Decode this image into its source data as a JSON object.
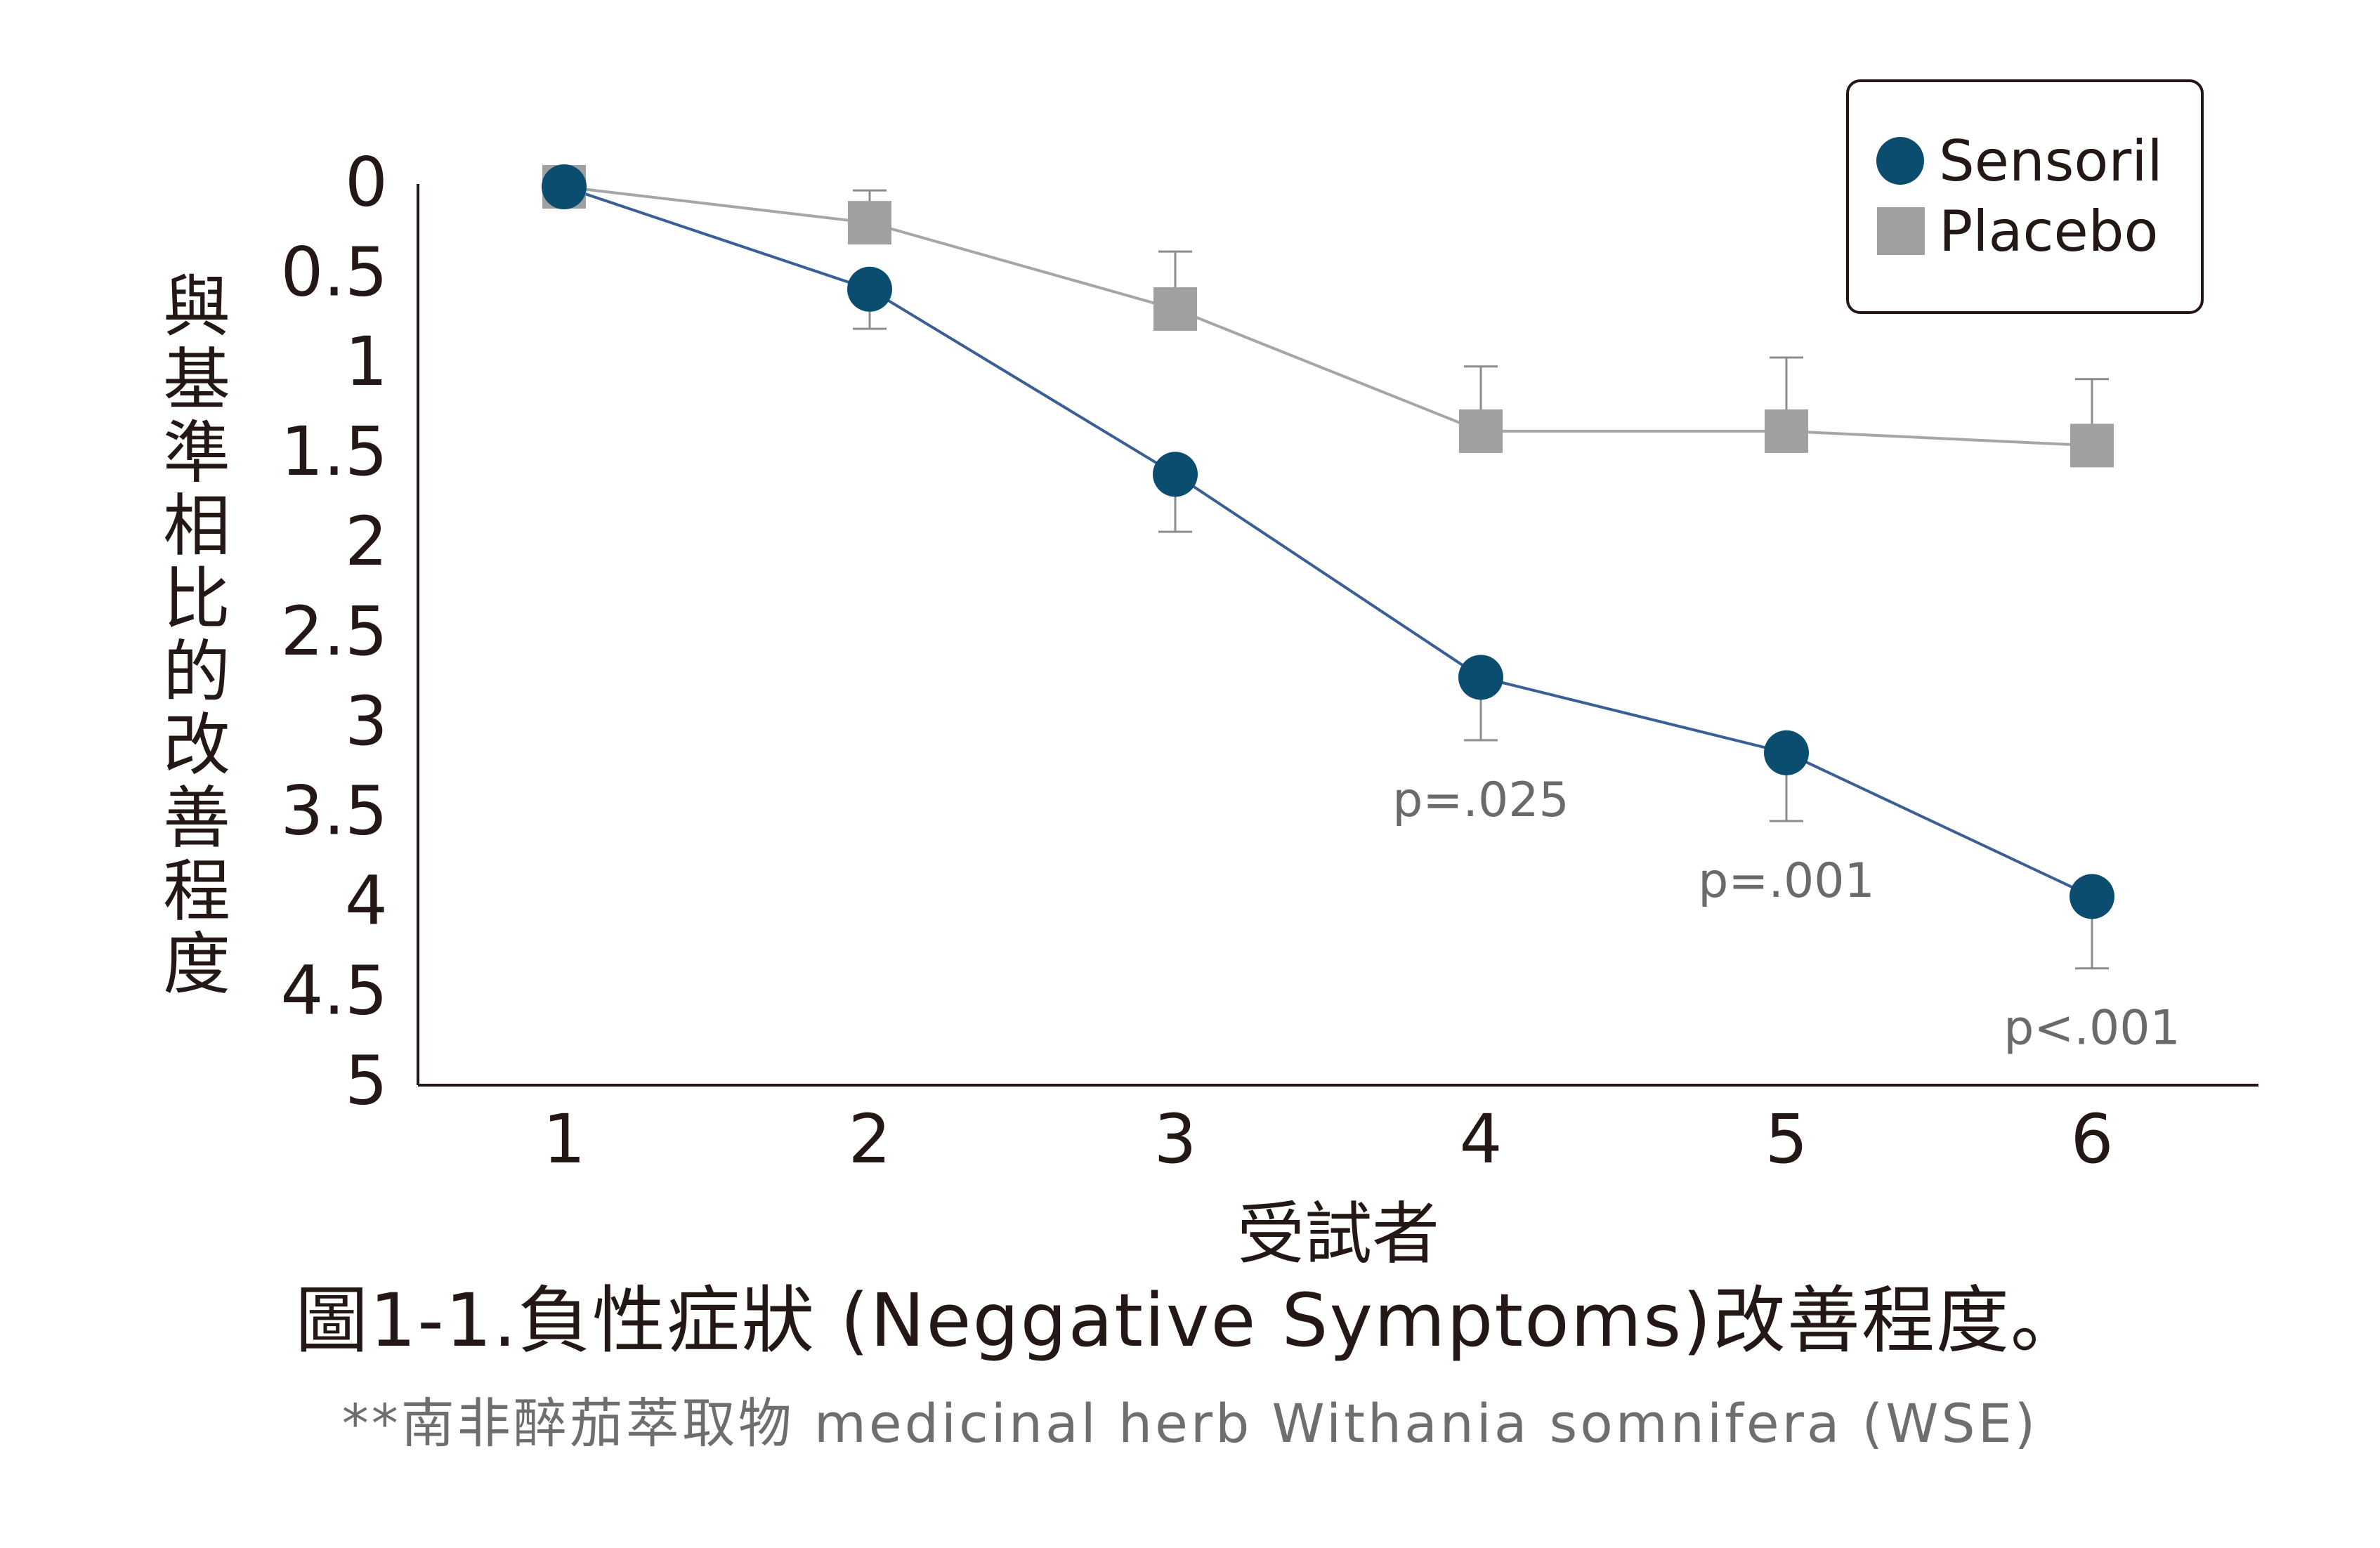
{
  "chart_data": {
    "type": "line",
    "x": [
      1,
      2,
      3,
      4,
      5,
      6
    ],
    "xlabel": "受試者",
    "ylabel": "與基準相比的改善程度",
    "ylim": [
      0,
      5
    ],
    "y_inverted": true,
    "yticks": [
      "0",
      "0.5",
      "1",
      "1.5",
      "2",
      "2.5",
      "3",
      "3.5",
      "4",
      "4.5",
      "5"
    ],
    "xticks": [
      "1",
      "2",
      "3",
      "4",
      "5",
      "6"
    ],
    "grid": false,
    "legend_position": "top-right",
    "series": [
      {
        "name": "Sensoril",
        "marker": "circle",
        "color": "#0b4d6e",
        "line_color": "#3a5f94",
        "values": [
          0,
          0.57,
          1.6,
          2.73,
          3.15,
          3.95
        ],
        "error": [
          0.1,
          0.22,
          0.32,
          0.35,
          0.38,
          0.4
        ]
      },
      {
        "name": "Placebo",
        "marker": "square",
        "color": "#a0a0a0",
        "line_color": "#a6a6a6",
        "values": [
          0,
          0.2,
          0.68,
          1.36,
          1.36,
          1.44
        ],
        "error": [
          0.1,
          0.18,
          0.32,
          0.36,
          0.41,
          0.37
        ]
      }
    ],
    "annotations": [
      {
        "x": 4,
        "text": "p=.025"
      },
      {
        "x": 5,
        "text": "p=.001"
      },
      {
        "x": 6,
        "text": "p<.001"
      }
    ]
  },
  "caption": {
    "title": "圖1-1.負性症狀 (Neggative Symptoms)改善程度。",
    "note": "**南非醉茄萃取物 medicinal herb Withania somnifera (WSE)"
  }
}
